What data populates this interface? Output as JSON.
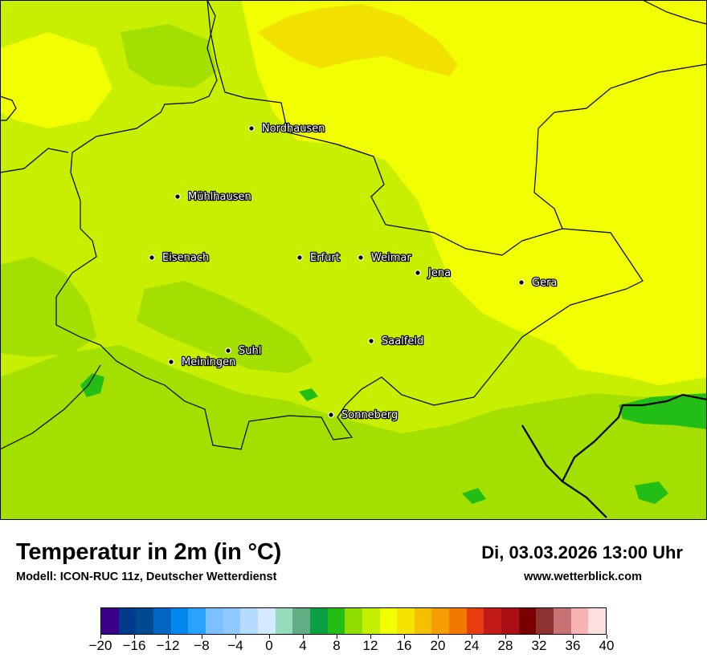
{
  "map": {
    "cities": [
      {
        "name": "Nordhausen"
      },
      {
        "name": "Mühlhausen"
      },
      {
        "name": "Eisenach"
      },
      {
        "name": "Erfurt"
      },
      {
        "name": "Weimar"
      },
      {
        "name": "Jena"
      },
      {
        "name": "Gera"
      },
      {
        "name": "Saalfeld"
      },
      {
        "name": "Suhl"
      },
      {
        "name": "Meiningen"
      },
      {
        "name": "Sonneberg"
      }
    ]
  },
  "footer": {
    "title": "Temperatur in 2m (in °C)",
    "model": "Modell: ICON-RUC 11z, Deutscher Wetterdienst",
    "datetime": "Di, 03.03.2026 13:00 Uhr",
    "website": "www.wetterblick.com"
  },
  "legend": {
    "colors": [
      "#3a0087",
      "#003a8c",
      "#004a91",
      "#0066c2",
      "#0088ee",
      "#2aa2ff",
      "#7cc0ff",
      "#8ecaff",
      "#b5dcff",
      "#d3e9ff",
      "#97dbbe",
      "#62ae84",
      "#0aa043",
      "#22be16",
      "#92dd00",
      "#c6ef00",
      "#f2ff00",
      "#f4e400",
      "#f4c000",
      "#f49c00",
      "#f37800",
      "#e83c10",
      "#c31a1a",
      "#a81015",
      "#7a0000",
      "#8e3232",
      "#c87474",
      "#f8b4b4",
      "#ffdede"
    ],
    "tick_labels": [
      "−20",
      "−16",
      "−12",
      "−8",
      "−4",
      "0",
      "4",
      "8",
      "12",
      "16",
      "20",
      "24",
      "28",
      "32",
      "36",
      "40"
    ]
  }
}
